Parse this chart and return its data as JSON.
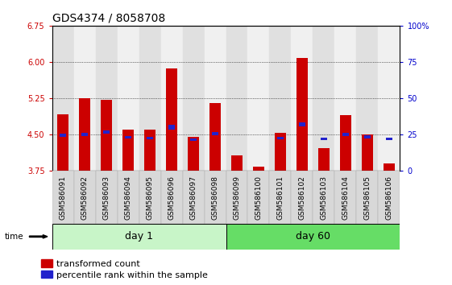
{
  "title": "GDS4374 / 8058708",
  "samples": [
    "GSM586091",
    "GSM586092",
    "GSM586093",
    "GSM586094",
    "GSM586095",
    "GSM586096",
    "GSM586097",
    "GSM586098",
    "GSM586099",
    "GSM586100",
    "GSM586101",
    "GSM586102",
    "GSM586103",
    "GSM586104",
    "GSM586105",
    "GSM586106"
  ],
  "groups": [
    {
      "label": "day 1",
      "count": 8
    },
    {
      "label": "day 60",
      "count": 8
    }
  ],
  "baseline": 3.75,
  "red_tops": [
    4.92,
    5.25,
    5.22,
    4.6,
    4.61,
    5.87,
    4.46,
    5.15,
    4.08,
    3.84,
    4.54,
    6.08,
    4.22,
    4.9,
    4.5,
    3.9
  ],
  "blue_bottoms": [
    4.45,
    4.47,
    4.52,
    4.42,
    4.4,
    4.6,
    4.37,
    4.48,
    null,
    null,
    4.4,
    4.67,
    4.38,
    4.47,
    4.42,
    4.38
  ],
  "blue_tops": [
    4.52,
    4.53,
    4.58,
    4.47,
    4.46,
    4.7,
    4.42,
    4.55,
    null,
    null,
    4.46,
    4.75,
    4.43,
    4.53,
    4.48,
    4.43
  ],
  "ylim_left": [
    3.75,
    6.75
  ],
  "ylim_right": [
    0,
    100
  ],
  "yticks_left": [
    3.75,
    4.5,
    5.25,
    6.0,
    6.75
  ],
  "yticks_right": [
    0,
    25,
    50,
    75,
    100
  ],
  "bar_color_red": "#cc0000",
  "bar_color_blue": "#2222cc",
  "background_color": "#ffffff",
  "tick_color_left": "#cc0000",
  "tick_color_right": "#0000cc",
  "bar_width": 0.55,
  "day1_bg_color": "#c8f5c8",
  "day60_bg_color": "#66dd66",
  "col_bg_even": "#e0e0e0",
  "col_bg_odd": "#f0f0f0",
  "group_label_fontsize": 9,
  "title_fontsize": 10,
  "sample_fontsize": 6.5,
  "legend_fontsize": 8
}
